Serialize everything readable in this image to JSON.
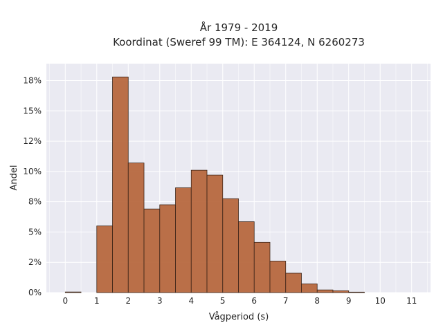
{
  "chart_data": {
    "type": "bar",
    "title": "År 1979 - 2019",
    "subtitle": "Koordinat (Sweref 99 TM): E 364124, N 6260273",
    "xlabel": "Vågperiod (s)",
    "ylabel": "Andel",
    "xlim": [
      -0.6,
      11.6
    ],
    "ylim": [
      0,
      18.9
    ],
    "grid": true,
    "x_ticks": [
      0,
      1,
      2,
      3,
      4,
      5,
      6,
      7,
      8,
      9,
      10,
      11
    ],
    "x_tick_labels": [
      "0",
      "1",
      "2",
      "3",
      "4",
      "5",
      "6",
      "7",
      "8",
      "9",
      "10",
      "11"
    ],
    "y_ticks": [
      0,
      2.5,
      5,
      7.5,
      10,
      12.5,
      15,
      17.5
    ],
    "y_tick_labels": [
      "0%",
      "2%",
      "5%",
      "8%",
      "10%",
      "12%",
      "15%",
      "18%"
    ],
    "bar_color": "#b5643a",
    "edge_color": "#3b2418",
    "plot_bg": "#eaeaf2",
    "grid_color": "#ffffff",
    "bins": [
      {
        "start": 0.0,
        "end": 0.5,
        "value": 0.05
      },
      {
        "start": 1.0,
        "end": 1.5,
        "value": 5.5
      },
      {
        "start": 1.5,
        "end": 2.0,
        "value": 17.8
      },
      {
        "start": 2.0,
        "end": 2.5,
        "value": 10.7
      },
      {
        "start": 2.5,
        "end": 3.0,
        "value": 6.9
      },
      {
        "start": 3.0,
        "end": 3.5,
        "value": 7.25
      },
      {
        "start": 3.5,
        "end": 4.0,
        "value": 8.65
      },
      {
        "start": 4.0,
        "end": 4.5,
        "value": 10.1
      },
      {
        "start": 4.5,
        "end": 5.0,
        "value": 9.7
      },
      {
        "start": 5.0,
        "end": 5.5,
        "value": 7.75
      },
      {
        "start": 5.5,
        "end": 6.0,
        "value": 5.85
      },
      {
        "start": 6.0,
        "end": 6.5,
        "value": 4.15
      },
      {
        "start": 6.5,
        "end": 7.0,
        "value": 2.6
      },
      {
        "start": 7.0,
        "end": 7.5,
        "value": 1.6
      },
      {
        "start": 7.5,
        "end": 8.0,
        "value": 0.72
      },
      {
        "start": 8.0,
        "end": 8.5,
        "value": 0.22
      },
      {
        "start": 8.5,
        "end": 9.0,
        "value": 0.15
      },
      {
        "start": 9.0,
        "end": 9.5,
        "value": 0.04
      }
    ]
  }
}
